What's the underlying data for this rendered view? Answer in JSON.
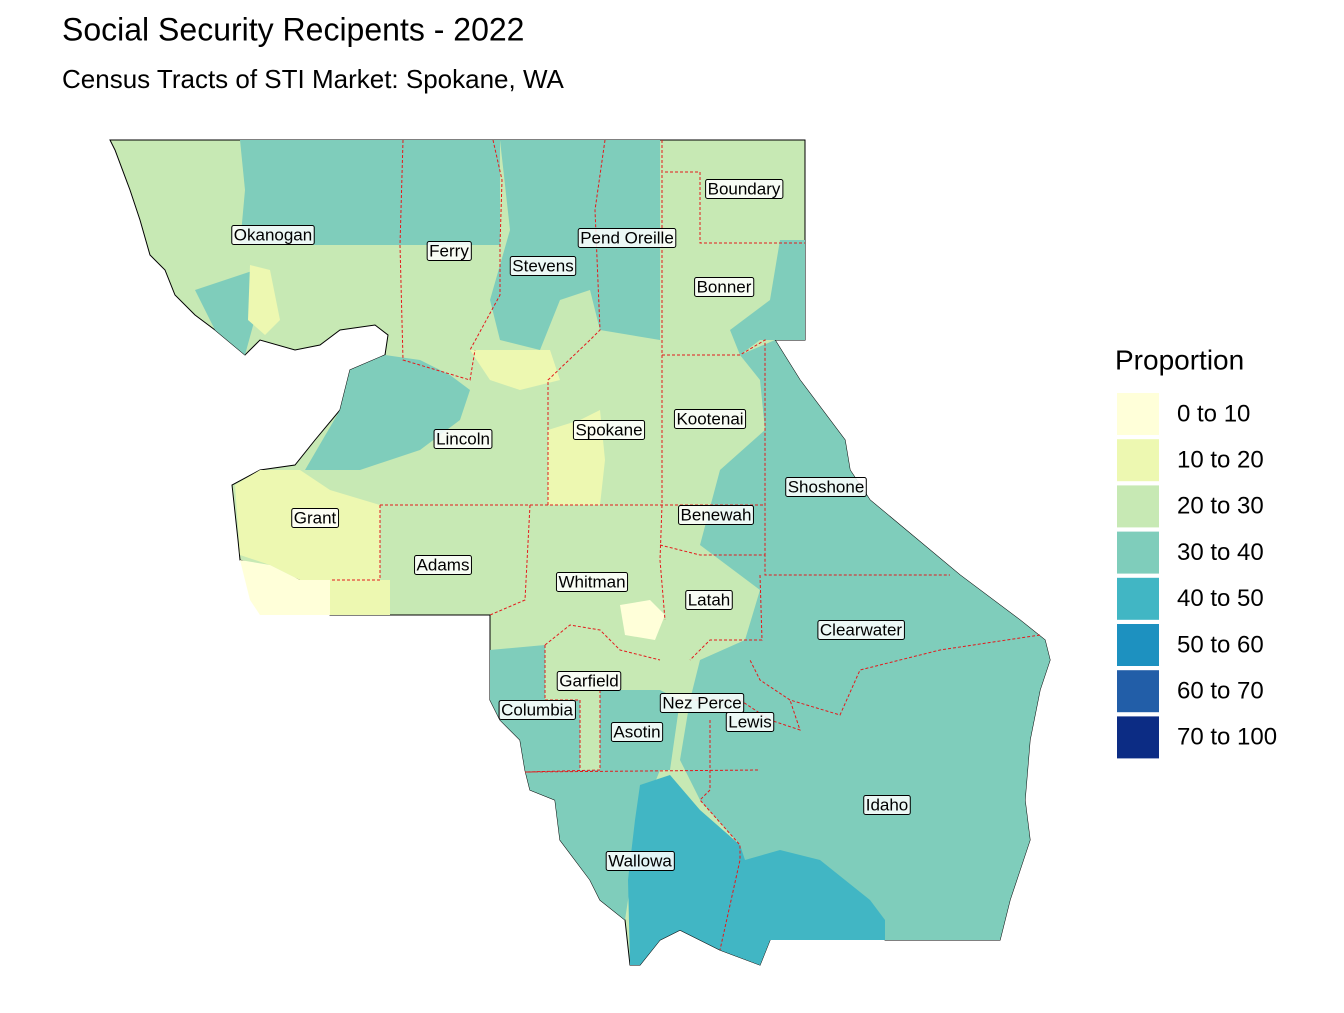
{
  "title": "Social Security Recipents - 2022",
  "subtitle": "Census Tracts of STI Market: Spokane, WA",
  "legend": {
    "title": "Proportion",
    "items": [
      {
        "label": "0 to 10",
        "color": "#ffffd9"
      },
      {
        "label": "10 to 20",
        "color": "#edf8b1"
      },
      {
        "label": "20 to 30",
        "color": "#c7e9b4"
      },
      {
        "label": "30 to 40",
        "color": "#7fcdbb"
      },
      {
        "label": "40 to 50",
        "color": "#41b6c4"
      },
      {
        "label": "50 to 60",
        "color": "#1d91c0"
      },
      {
        "label": "60 to 70",
        "color": "#225ea8"
      },
      {
        "label": "70 to 100",
        "color": "#0c2c84"
      }
    ]
  },
  "counties": [
    "Okanogan",
    "Ferry",
    "Stevens",
    "Pend Oreille",
    "Boundary",
    "Bonner",
    "Lincoln",
    "Spokane",
    "Kootenai",
    "Shoshone",
    "Benewah",
    "Grant",
    "Adams",
    "Whitman",
    "Latah",
    "Clearwater",
    "Garfield",
    "Columbia",
    "Nez Perce",
    "Asotin",
    "Lewis",
    "Idaho",
    "Wallowa"
  ]
}
